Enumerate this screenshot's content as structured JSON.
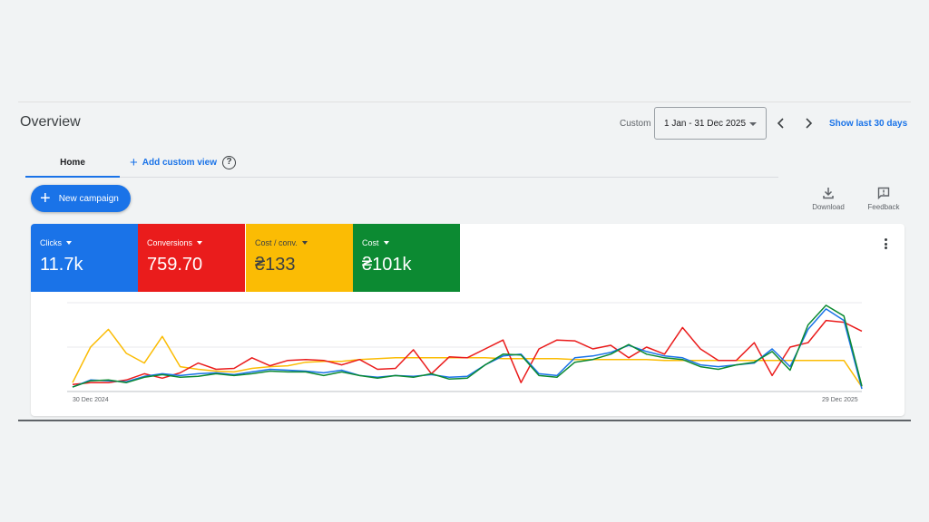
{
  "header": {
    "title": "Overview",
    "date_range_label": "Custom",
    "date_range_value": "1 Jan - 31 Dec 2025",
    "show_last_label": "Show last 30 days"
  },
  "tabs": {
    "home_label": "Home",
    "add_view_label": "Add custom view",
    "help_glyph": "?"
  },
  "actions": {
    "new_campaign_label": "New campaign",
    "download_label": "Download",
    "feedback_label": "Feedback"
  },
  "icons": {
    "prev": "chevron-left-icon",
    "next": "chevron-right-icon",
    "download": "download-icon",
    "feedback": "feedback-icon",
    "more": "more-vert-icon",
    "help": "help-icon",
    "plus": "plus-icon"
  },
  "metrics": [
    {
      "label": "Clicks",
      "value": "11.7k",
      "color": "#1a73e8"
    },
    {
      "label": "Conversions",
      "value": "759.70",
      "color": "#ea1c1c"
    },
    {
      "label": "Cost / conv.",
      "value": "₴133",
      "color": "#fbbc04"
    },
    {
      "label": "Cost",
      "value": "₴101k",
      "color": "#0c8a32"
    }
  ],
  "chart_data": {
    "type": "line",
    "x_start_label": "30 Dec 2024",
    "x_end_label": "29 Dec 2025",
    "grid": true,
    "ylim": [
      0,
      100
    ],
    "series": [
      {
        "color": "#1a73e8",
        "values": [
          5,
          13,
          12,
          11,
          17,
          20,
          18,
          20,
          21,
          19,
          22,
          25,
          24,
          23,
          21,
          24,
          18,
          16,
          18,
          17,
          19,
          16,
          17,
          30,
          40,
          42,
          20,
          18,
          38,
          40,
          44,
          52,
          45,
          40,
          38,
          30,
          28,
          30,
          32,
          48,
          28,
          70,
          93,
          80,
          3
        ]
      },
      {
        "color": "#ea1c1c",
        "values": [
          8,
          10,
          10,
          13,
          20,
          15,
          21,
          32,
          25,
          26,
          38,
          29,
          35,
          36,
          35,
          30,
          36,
          25,
          26,
          47,
          20,
          39,
          38,
          48,
          58,
          10,
          48,
          58,
          57,
          48,
          52,
          38,
          50,
          42,
          72,
          48,
          35,
          35,
          55,
          18,
          50,
          55,
          80,
          78,
          68
        ]
      },
      {
        "color": "#fbbc04",
        "values": [
          10,
          50,
          70,
          43,
          32,
          62,
          28,
          25,
          23,
          22,
          26,
          28,
          29,
          33,
          34,
          34,
          36,
          37,
          38,
          38,
          38,
          38,
          38,
          38,
          37,
          37,
          37,
          37,
          36,
          36,
          36,
          36,
          36,
          35,
          35,
          35,
          35,
          35,
          35,
          35,
          35,
          35,
          35,
          35,
          5
        ]
      },
      {
        "color": "#0c8a32",
        "values": [
          5,
          12,
          13,
          10,
          16,
          19,
          16,
          17,
          20,
          18,
          20,
          23,
          22,
          22,
          18,
          22,
          18,
          15,
          18,
          16,
          20,
          14,
          15,
          30,
          42,
          41,
          18,
          16,
          33,
          36,
          42,
          53,
          42,
          38,
          36,
          28,
          25,
          30,
          33,
          45,
          24,
          75,
          97,
          85,
          6
        ]
      }
    ]
  }
}
